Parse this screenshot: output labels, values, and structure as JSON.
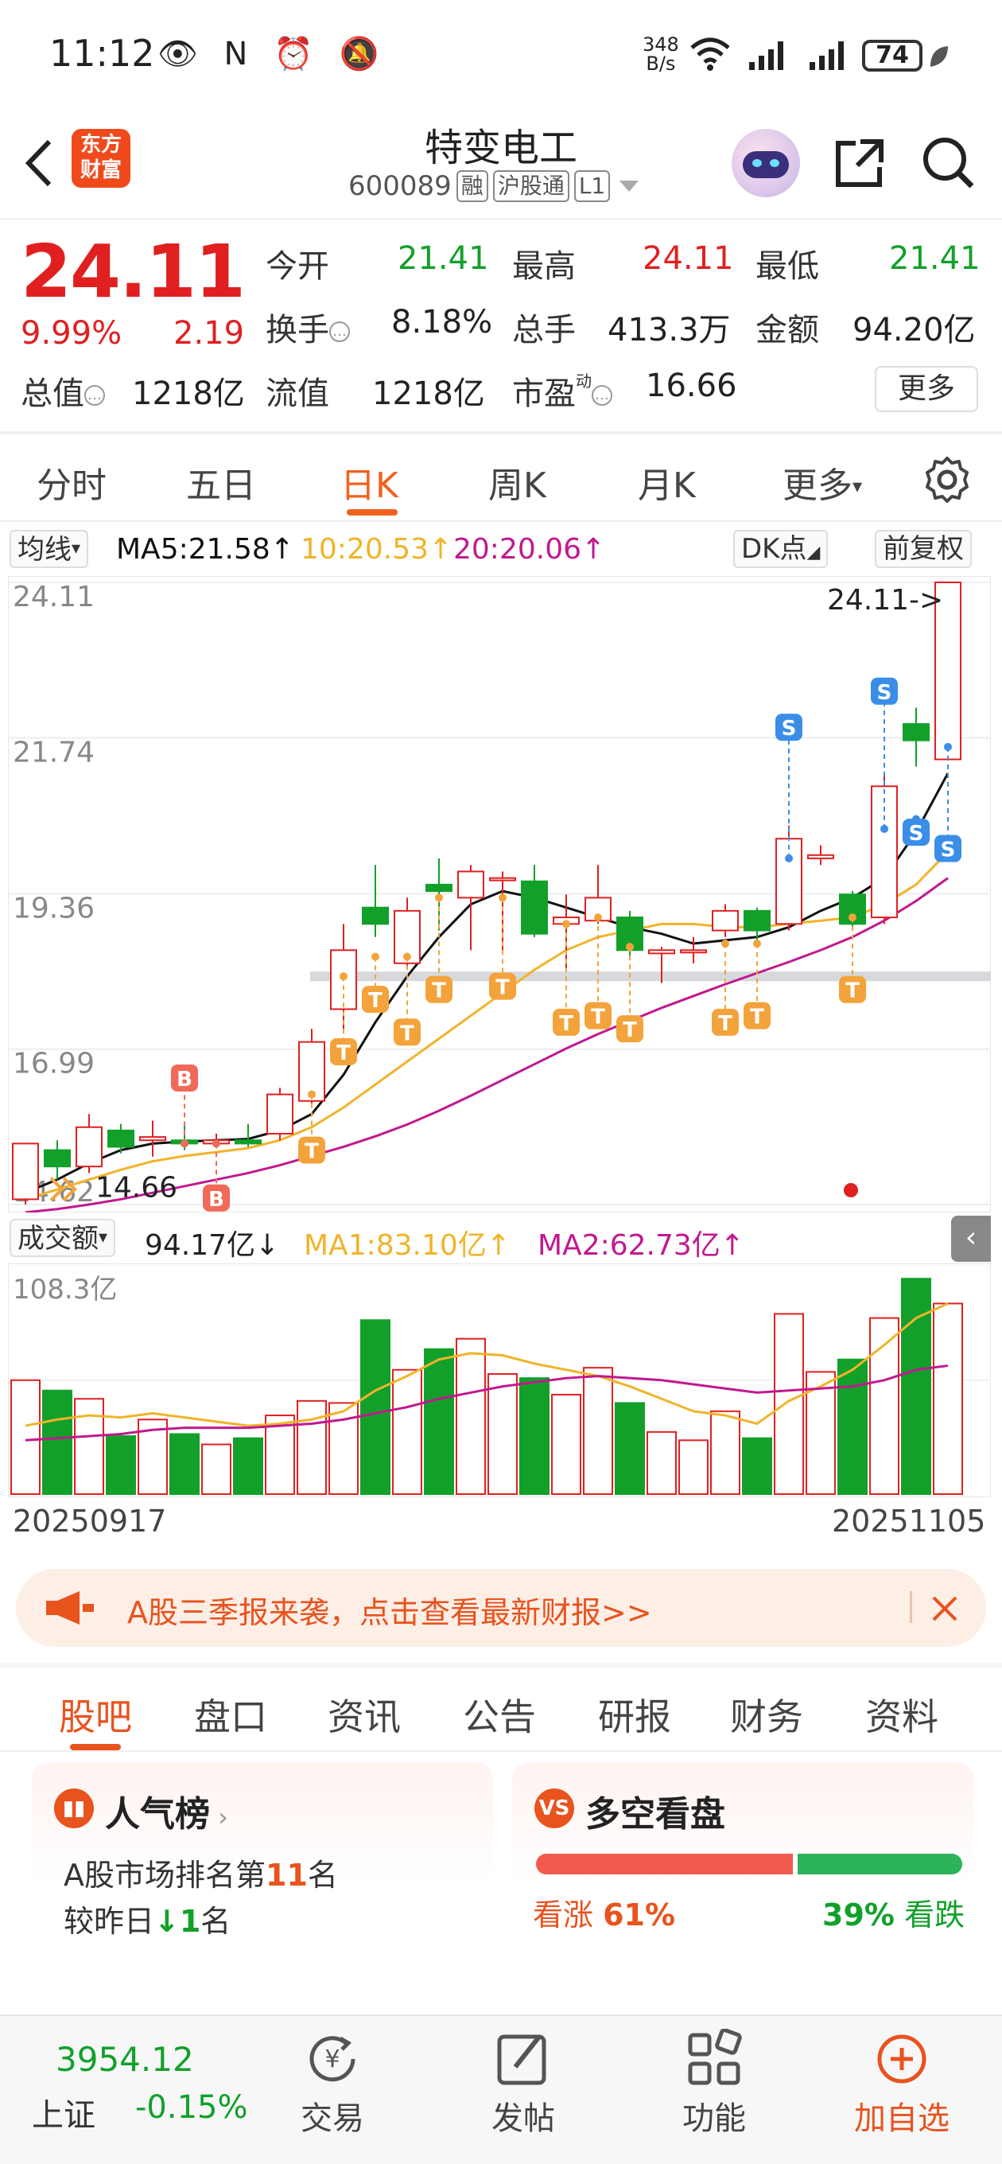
{
  "status_bar": {
    "time": "11:12",
    "icons": "👁 N ⏰ 🔕",
    "net_speed_value": "348",
    "net_speed_unit": "B/s",
    "battery": "74"
  },
  "header": {
    "logo": "东方财富",
    "stock_name": "特变电工",
    "stock_code": "600089",
    "tags": [
      "融",
      "沪股通",
      "L1"
    ]
  },
  "quote": {
    "price": "24.11",
    "change_pct": "9.99%",
    "change": "2.19",
    "fields": [
      {
        "label": "今开",
        "value": "21.41",
        "color": "green"
      },
      {
        "label": "最高",
        "value": "24.11",
        "color": "red"
      },
      {
        "label": "最低",
        "value": "21.41",
        "color": "green"
      },
      {
        "label": "换手",
        "value": "8.18%",
        "color": "normal"
      },
      {
        "label": "总手",
        "value": "413.3万",
        "color": "normal"
      },
      {
        "label": "金额",
        "value": "94.20亿",
        "color": "normal"
      },
      {
        "label": "总值",
        "value": "1218亿",
        "color": "normal"
      },
      {
        "label": "流值",
        "value": "1218亿",
        "color": "normal"
      },
      {
        "label": "市盈",
        "value": "16.66",
        "color": "normal"
      }
    ],
    "pe_superscript": "动",
    "more_label": "更多"
  },
  "chart_tabs": [
    "分时",
    "五日",
    "日K",
    "周K",
    "月K",
    "更多"
  ],
  "active_chart_tab": 2,
  "ma_legend": {
    "selector": "均线",
    "ma5": "MA5:21.58↑",
    "ma10": "10:20.53↑",
    "ma20": "20:20.06↑",
    "dk": "DK点",
    "adjust": "前复权"
  },
  "vol_legend": {
    "selector": "成交额",
    "vol": "94.17亿↓",
    "ma1": "MA1:83.10亿↑",
    "ma2": "MA2:62.73亿↑"
  },
  "colors": {
    "up": "#e02020",
    "down": "#12a02a",
    "ma5": "#111111",
    "ma10": "#f0b429",
    "ma20": "#c2188f",
    "accent": "#f0621e",
    "marker": "#f3a33b",
    "sell": "#3a8ee8"
  },
  "chart_data": {
    "type": "candlestick",
    "y_ticks": [
      "24.11",
      "21.74",
      "19.36",
      "16.99",
      "14.62"
    ],
    "ylim": [
      14.62,
      24.11
    ],
    "price_callouts": {
      "high": "24.11->",
      "low": "14.66"
    },
    "candles": [
      {
        "o": 14.7,
        "c": 15.55,
        "h": 15.55,
        "l": 14.62
      },
      {
        "o": 15.45,
        "c": 15.2,
        "h": 15.6,
        "l": 15.0
      },
      {
        "o": 15.2,
        "c": 15.8,
        "h": 16.0,
        "l": 15.1
      },
      {
        "o": 15.75,
        "c": 15.5,
        "h": 15.85,
        "l": 15.4
      },
      {
        "o": 15.6,
        "c": 15.65,
        "h": 15.9,
        "l": 15.35
      },
      {
        "o": 15.6,
        "c": 15.55,
        "h": 15.85,
        "l": 15.45
      },
      {
        "o": 15.55,
        "c": 15.6,
        "h": 15.7,
        "l": 15.5
      },
      {
        "o": 15.6,
        "c": 15.55,
        "h": 15.85,
        "l": 15.5
      },
      {
        "o": 15.7,
        "c": 16.3,
        "h": 16.4,
        "l": 15.6
      },
      {
        "o": 16.2,
        "c": 17.1,
        "h": 17.3,
        "l": 16.1
      },
      {
        "o": 17.6,
        "c": 18.5,
        "h": 18.9,
        "l": 17.3
      },
      {
        "o": 19.15,
        "c": 18.9,
        "h": 19.8,
        "l": 18.7
      },
      {
        "o": 18.3,
        "c": 19.1,
        "h": 19.3,
        "l": 18.2
      },
      {
        "o": 19.5,
        "c": 19.4,
        "h": 19.9,
        "l": 18.8
      },
      {
        "o": 19.3,
        "c": 19.7,
        "h": 19.8,
        "l": 18.5
      },
      {
        "o": 19.6,
        "c": 19.6,
        "h": 19.7,
        "l": 18.5
      },
      {
        "o": 19.55,
        "c": 18.75,
        "h": 19.8,
        "l": 18.7
      },
      {
        "o": 18.9,
        "c": 19.0,
        "h": 19.35,
        "l": 18.2
      },
      {
        "o": 18.95,
        "c": 19.3,
        "h": 19.8,
        "l": 18.9
      },
      {
        "o": 19.0,
        "c": 18.5,
        "h": 19.1,
        "l": 18.4
      },
      {
        "o": 18.45,
        "c": 18.5,
        "h": 18.55,
        "l": 18.0
      },
      {
        "o": 18.5,
        "c": 18.5,
        "h": 18.7,
        "l": 18.3
      },
      {
        "o": 18.8,
        "c": 19.1,
        "h": 19.2,
        "l": 18.7
      },
      {
        "o": 19.1,
        "c": 18.8,
        "h": 19.15,
        "l": 18.6
      },
      {
        "o": 18.9,
        "c": 20.2,
        "h": 20.4,
        "l": 18.8
      },
      {
        "o": 19.9,
        "c": 19.95,
        "h": 20.1,
        "l": 19.8
      },
      {
        "o": 19.35,
        "c": 18.9,
        "h": 19.4,
        "l": 18.8
      },
      {
        "o": 19.0,
        "c": 21.0,
        "h": 21.2,
        "l": 18.9
      },
      {
        "o": 21.95,
        "c": 21.7,
        "h": 22.2,
        "l": 21.3
      },
      {
        "o": 21.41,
        "c": 24.11,
        "h": 24.11,
        "l": 21.41
      }
    ],
    "ma5": [
      14.8,
      15.0,
      15.25,
      15.45,
      15.55,
      15.58,
      15.6,
      15.62,
      15.75,
      16.0,
      16.6,
      17.4,
      18.1,
      18.7,
      19.2,
      19.4,
      19.3,
      19.15,
      19.0,
      18.85,
      18.75,
      18.6,
      18.65,
      18.7,
      18.85,
      19.1,
      19.3,
      19.6,
      20.3,
      21.2
    ],
    "ma10": [
      14.7,
      14.85,
      15.0,
      15.15,
      15.28,
      15.36,
      15.42,
      15.48,
      15.6,
      15.8,
      16.1,
      16.45,
      16.8,
      17.15,
      17.5,
      17.85,
      18.2,
      18.5,
      18.7,
      18.8,
      18.9,
      18.9,
      18.85,
      18.85,
      18.9,
      18.95,
      19.0,
      19.2,
      19.5,
      20.0
    ],
    "ma20": [
      14.5,
      14.55,
      14.62,
      14.7,
      14.8,
      14.9,
      15.0,
      15.1,
      15.22,
      15.36,
      15.5,
      15.66,
      15.84,
      16.05,
      16.28,
      16.52,
      16.76,
      17.0,
      17.22,
      17.42,
      17.62,
      17.8,
      17.98,
      18.15,
      18.32,
      18.5,
      18.7,
      18.95,
      19.25,
      19.6
    ],
    "trade_markers": [
      {
        "i": 5,
        "type": "B",
        "price": 15.55,
        "label_price": 16.55
      },
      {
        "i": 6,
        "type": "B",
        "price": 15.55,
        "label_price": 14.72
      },
      {
        "i": 9,
        "type": "T",
        "price": 16.3,
        "label_price": 15.45
      },
      {
        "i": 10,
        "type": "T",
        "price": 18.1,
        "label_price": 16.95
      },
      {
        "i": 11,
        "type": "T",
        "price": 18.4,
        "label_price": 17.75
      },
      {
        "i": 12,
        "type": "T",
        "price": 18.4,
        "label_price": 17.25
      },
      {
        "i": 13,
        "type": "T",
        "price": 19.3,
        "label_price": 17.9
      },
      {
        "i": 15,
        "type": "T",
        "price": 19.3,
        "label_price": 17.95
      },
      {
        "i": 17,
        "type": "T",
        "price": 18.9,
        "label_price": 17.4
      },
      {
        "i": 18,
        "type": "T",
        "price": 19.0,
        "label_price": 17.5
      },
      {
        "i": 19,
        "type": "T",
        "price": 18.55,
        "label_price": 17.3
      },
      {
        "i": 22,
        "type": "T",
        "price": 18.6,
        "label_price": 17.4
      },
      {
        "i": 23,
        "type": "T",
        "price": 18.6,
        "label_price": 17.5
      },
      {
        "i": 26,
        "type": "T",
        "price": 19.0,
        "label_price": 17.9
      },
      {
        "i": 24,
        "type": "S",
        "price": 19.9,
        "label_price": 21.9
      },
      {
        "i": 27,
        "type": "S",
        "price": 20.35,
        "label_price": 22.45
      },
      {
        "i": 28,
        "type": "S",
        "price": 20.5,
        "label_price": 20.3
      },
      {
        "i": 29,
        "type": "S",
        "price": 21.6,
        "label_price": 20.05
      }
    ],
    "support_level": 18.1,
    "volume": {
      "top_label": "108.3亿",
      "max": 108.3,
      "values": [
        55,
        50,
        46,
        28,
        36,
        29,
        24,
        27,
        38,
        45,
        44,
        84,
        60,
        70,
        75,
        58,
        56,
        48,
        61,
        44,
        30,
        26,
        40,
        27,
        87,
        59,
        65,
        85,
        104,
        92
      ],
      "ma1": [
        33,
        36,
        38,
        37,
        39,
        37,
        35,
        33,
        34,
        36,
        40,
        50,
        57,
        65,
        68,
        67,
        63,
        60,
        57,
        52,
        46,
        40,
        38,
        34,
        45,
        52,
        60,
        72,
        85,
        92
      ],
      "ma2": [
        26,
        27,
        28,
        29,
        31,
        32,
        32,
        32,
        33,
        34,
        36,
        39,
        42,
        46,
        49,
        52,
        54,
        56,
        57,
        56,
        55,
        53,
        51,
        49,
        50,
        51,
        52,
        55,
        60,
        62
      ]
    },
    "x_dates": [
      "20250917",
      "20251105"
    ]
  },
  "banner": {
    "text": "A股三季报来袭，点击查看最新财报>>"
  },
  "section_tabs": [
    "股吧",
    "盘口",
    "资讯",
    "公告",
    "研报",
    "财务",
    "资料"
  ],
  "active_section_tab": 0,
  "popularity_card": {
    "title": "人气榜",
    "line1_prefix": "A股市场排名第",
    "rank": "11",
    "line1_suffix": "名",
    "line2_prefix": "较昨日",
    "line2_change": "↓1",
    "line2_suffix": "名"
  },
  "sentiment_card": {
    "title": "多空看盘",
    "up_label": "看涨",
    "up_pct": "61%",
    "down_pct": "39%",
    "down_label": "看跌",
    "up_fraction": 0.61
  },
  "bottom_nav": {
    "index_value": "3954.12",
    "index_name": "上证",
    "index_change": "-0.15%",
    "items": [
      {
        "label": "交易",
        "icon": "trade-icon"
      },
      {
        "label": "发帖",
        "icon": "post-icon"
      },
      {
        "label": "功能",
        "icon": "grid-icon"
      },
      {
        "label": "加自选",
        "icon": "add-icon"
      }
    ]
  }
}
